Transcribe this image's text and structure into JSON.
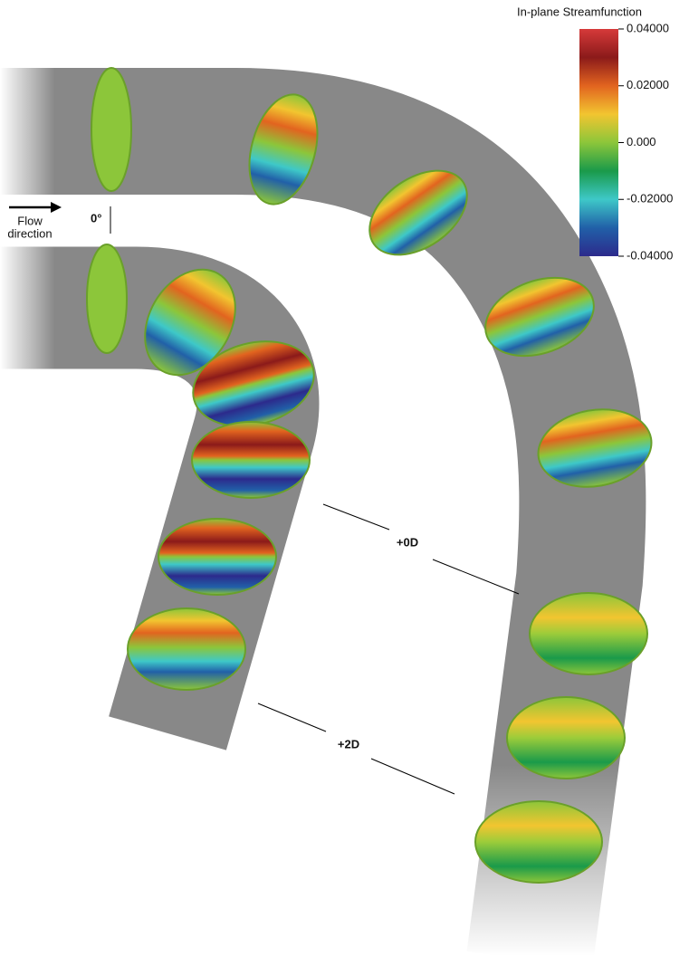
{
  "colorbar": {
    "title": "In-plane  Streamfunction",
    "lim": [
      -0.04,
      0.04
    ],
    "ticks": [
      {
        "value": 0.04,
        "label": "0.04000"
      },
      {
        "value": 0.02,
        "label": "0.02000"
      },
      {
        "value": 0,
        "label": "0.000"
      },
      {
        "value": -0.02,
        "label": "-0.02000"
      },
      {
        "value": -0.04,
        "label": "-0.04000"
      }
    ],
    "colors": [
      "#d63a3a",
      "#8b1a1a",
      "#e2641f",
      "#f2c530",
      "#8cc63a",
      "#1a9a4a",
      "#3ec8c8",
      "#2160a8",
      "#2c2a8c"
    ]
  },
  "annotations": {
    "flow_line1": "Flow",
    "flow_line2": "direction",
    "angle": "0°",
    "station1": "+0D",
    "station2": "+2D"
  }
}
